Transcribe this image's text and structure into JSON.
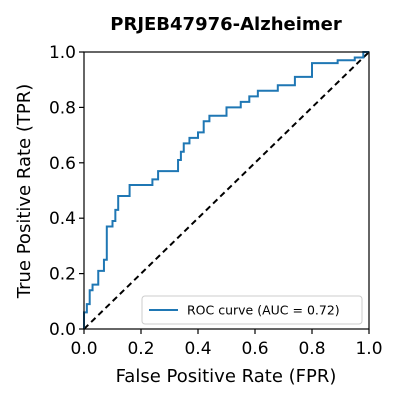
{
  "chart_data": {
    "type": "line",
    "title": "PRJEB47976-Alzheimer",
    "xlabel": "False Positive Rate (FPR)",
    "ylabel": "True Positive Rate (TPR)",
    "xlim": [
      0.0,
      1.0
    ],
    "ylim": [
      0.0,
      1.0
    ],
    "xticks": [
      "0.0",
      "0.2",
      "0.4",
      "0.6",
      "0.8",
      "1.0"
    ],
    "yticks": [
      "0.0",
      "0.2",
      "0.4",
      "0.6",
      "0.8",
      "1.0"
    ],
    "grid": false,
    "legend_position": "lower-right",
    "series": [
      {
        "name": "ROC curve (AUC = 0.72)",
        "color": "#1f77b4",
        "points": [
          [
            0.0,
            0.0
          ],
          [
            0.0,
            0.06
          ],
          [
            0.01,
            0.06
          ],
          [
            0.01,
            0.09
          ],
          [
            0.02,
            0.09
          ],
          [
            0.02,
            0.14
          ],
          [
            0.03,
            0.14
          ],
          [
            0.03,
            0.16
          ],
          [
            0.05,
            0.16
          ],
          [
            0.05,
            0.21
          ],
          [
            0.07,
            0.21
          ],
          [
            0.07,
            0.25
          ],
          [
            0.08,
            0.25
          ],
          [
            0.08,
            0.37
          ],
          [
            0.1,
            0.37
          ],
          [
            0.1,
            0.39
          ],
          [
            0.11,
            0.39
          ],
          [
            0.11,
            0.43
          ],
          [
            0.12,
            0.43
          ],
          [
            0.12,
            0.48
          ],
          [
            0.16,
            0.48
          ],
          [
            0.16,
            0.52
          ],
          [
            0.24,
            0.52
          ],
          [
            0.24,
            0.54
          ],
          [
            0.26,
            0.54
          ],
          [
            0.26,
            0.57
          ],
          [
            0.33,
            0.57
          ],
          [
            0.33,
            0.61
          ],
          [
            0.34,
            0.61
          ],
          [
            0.34,
            0.64
          ],
          [
            0.35,
            0.64
          ],
          [
            0.35,
            0.67
          ],
          [
            0.37,
            0.67
          ],
          [
            0.37,
            0.69
          ],
          [
            0.4,
            0.69
          ],
          [
            0.4,
            0.71
          ],
          [
            0.42,
            0.71
          ],
          [
            0.42,
            0.75
          ],
          [
            0.44,
            0.75
          ],
          [
            0.44,
            0.77
          ],
          [
            0.5,
            0.77
          ],
          [
            0.5,
            0.8
          ],
          [
            0.55,
            0.8
          ],
          [
            0.55,
            0.82
          ],
          [
            0.58,
            0.82
          ],
          [
            0.58,
            0.84
          ],
          [
            0.61,
            0.84
          ],
          [
            0.61,
            0.86
          ],
          [
            0.68,
            0.86
          ],
          [
            0.68,
            0.88
          ],
          [
            0.74,
            0.88
          ],
          [
            0.74,
            0.91
          ],
          [
            0.8,
            0.91
          ],
          [
            0.8,
            0.96
          ],
          [
            0.89,
            0.96
          ],
          [
            0.89,
            0.97
          ],
          [
            0.95,
            0.97
          ],
          [
            0.95,
            0.98
          ],
          [
            0.98,
            0.98
          ],
          [
            0.98,
            1.0
          ],
          [
            1.0,
            1.0
          ]
        ]
      },
      {
        "name": "",
        "style": "dashed",
        "color": "#000000",
        "points": [
          [
            0.0,
            0.0
          ],
          [
            1.0,
            1.0
          ]
        ]
      }
    ]
  }
}
